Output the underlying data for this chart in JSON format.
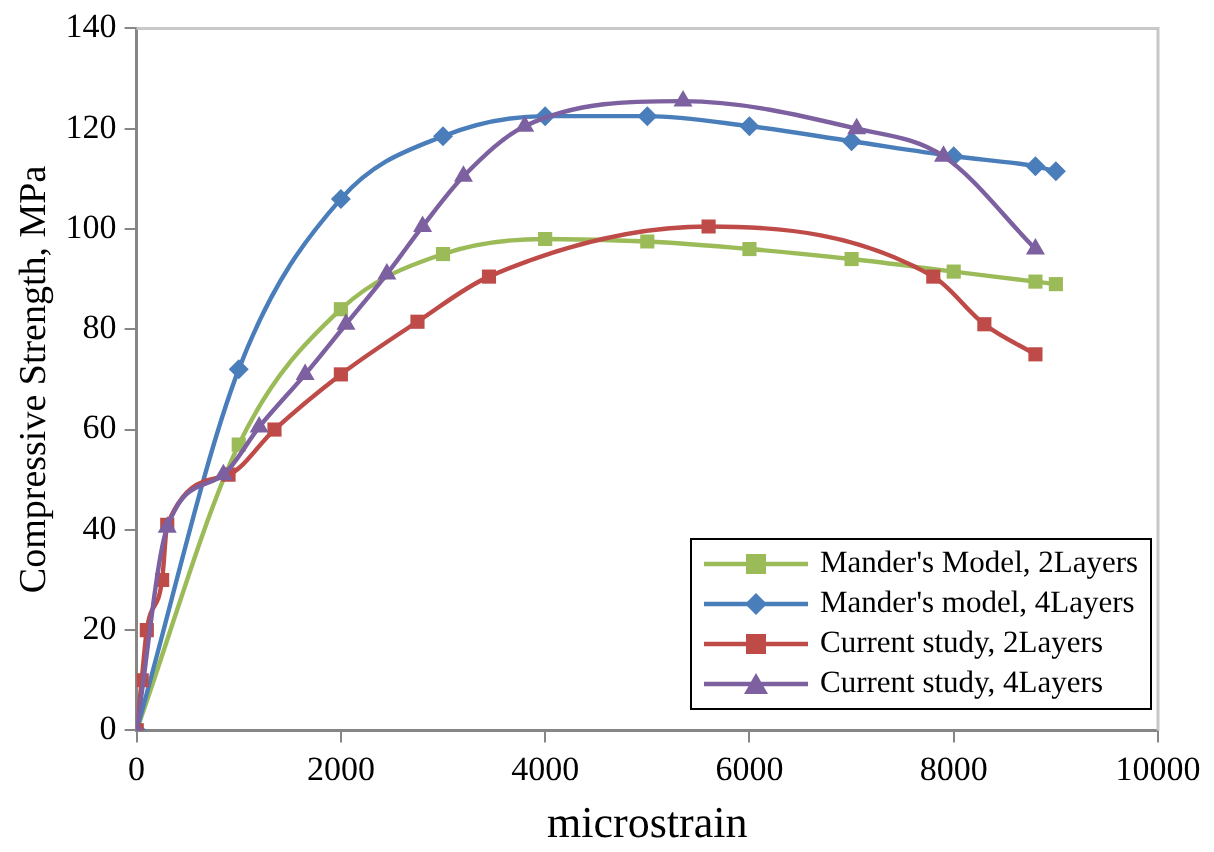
{
  "chart_data": {
    "type": "line",
    "xlabel": "microstrain",
    "ylabel": "Compressive Strength, MPa",
    "xlim": [
      0,
      10000
    ],
    "xticks": [
      0,
      2000,
      4000,
      6000,
      8000,
      10000
    ],
    "ylim": [
      0,
      140
    ],
    "yticks": [
      0,
      20,
      40,
      60,
      80,
      100,
      120,
      140
    ],
    "grid": false,
    "legend": "bottom right",
    "line_style": "solid",
    "series": [
      {
        "name": "Mander's Model, 2Layers",
        "color": "#9bbb59",
        "marker": "square",
        "x": [
          0,
          1000,
          2000,
          3000,
          4000,
          5000,
          6000,
          7000,
          8000,
          8800,
          9000
        ],
        "values": [
          0,
          57,
          84,
          95,
          98,
          97.5,
          96,
          94,
          91.5,
          89.5,
          89
        ]
      },
      {
        "name": "Mander's model, 4Layers",
        "color": "#4a7ebb",
        "marker": "diamond",
        "x": [
          0,
          1000,
          2000,
          3000,
          4000,
          5000,
          6000,
          7000,
          8000,
          8800,
          9000
        ],
        "values": [
          0,
          72,
          106,
          118.5,
          122.5,
          122.5,
          120.5,
          117.5,
          114.5,
          112.5,
          111.5
        ]
      },
      {
        "name": "Current study, 2Layers",
        "color": "#be4b48",
        "marker": "square",
        "x": [
          0,
          50,
          100,
          250,
          300,
          900,
          1350,
          2000,
          2750,
          3450,
          5600,
          7800,
          8300,
          8800
        ],
        "values": [
          0,
          10,
          20,
          30,
          41,
          51,
          60,
          71,
          81.5,
          90.5,
          100.5,
          90.5,
          81,
          75
        ]
      },
      {
        "name": "Current study, 4Layers",
        "color": "#7d60a0",
        "marker": "triangle",
        "x": [
          0,
          300,
          850,
          1200,
          1650,
          2050,
          2450,
          2800,
          3200,
          3800,
          5350,
          7050,
          7900,
          8800
        ],
        "values": [
          0,
          40.5,
          51,
          60.5,
          71,
          81,
          91,
          100.5,
          110.5,
          120.5,
          125.5,
          120,
          114.5,
          96
        ]
      }
    ]
  }
}
